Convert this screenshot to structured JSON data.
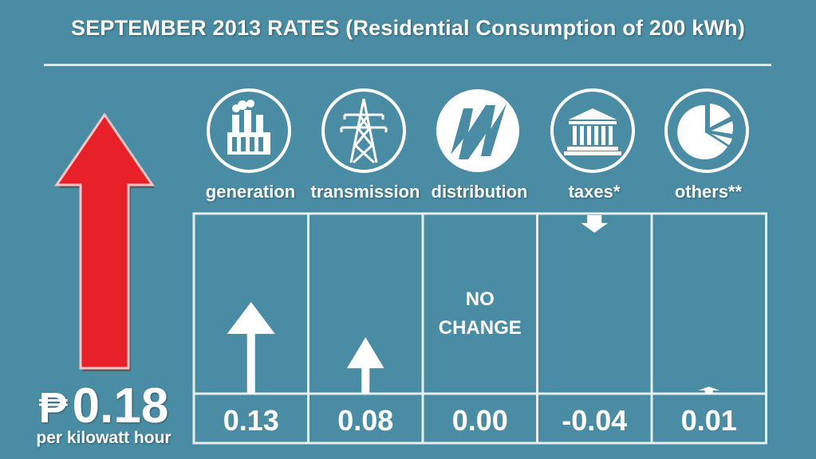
{
  "title": "SEPTEMBER 2013 RATES (Residential Consumption of 200 kWh)",
  "total": {
    "currency_symbol": "₱",
    "value": "0.18",
    "unit": "per kilowatt hour",
    "direction": "up",
    "color": "#e8202a"
  },
  "components": [
    {
      "label": "generation",
      "icon": "factory-icon"
    },
    {
      "label": "transmission",
      "icon": "transmission-tower-icon"
    },
    {
      "label": "distribution",
      "icon": "meralco-logo-icon"
    },
    {
      "label": "taxes*",
      "icon": "government-building-icon"
    },
    {
      "label": "others**",
      "icon": "pie-chart-icon"
    }
  ],
  "no_change_text": "NO CHANGE",
  "colors": {
    "background": "#4a8ca3",
    "foreground": "#ffffff",
    "increase": "#e8202a"
  },
  "chart_data": {
    "type": "bar",
    "categories": [
      "generation",
      "transmission",
      "distribution",
      "taxes*",
      "others**"
    ],
    "values": [
      0.13,
      0.08,
      0.0,
      -0.04,
      0.01
    ],
    "value_labels": [
      "0.13",
      "0.08",
      "0.00",
      "-0.04",
      "0.01"
    ],
    "title": "SEPTEMBER 2013 RATES (Residential Consumption of 200 kWh)",
    "xlabel": "",
    "ylabel": "",
    "grid": true,
    "legend": "none"
  }
}
